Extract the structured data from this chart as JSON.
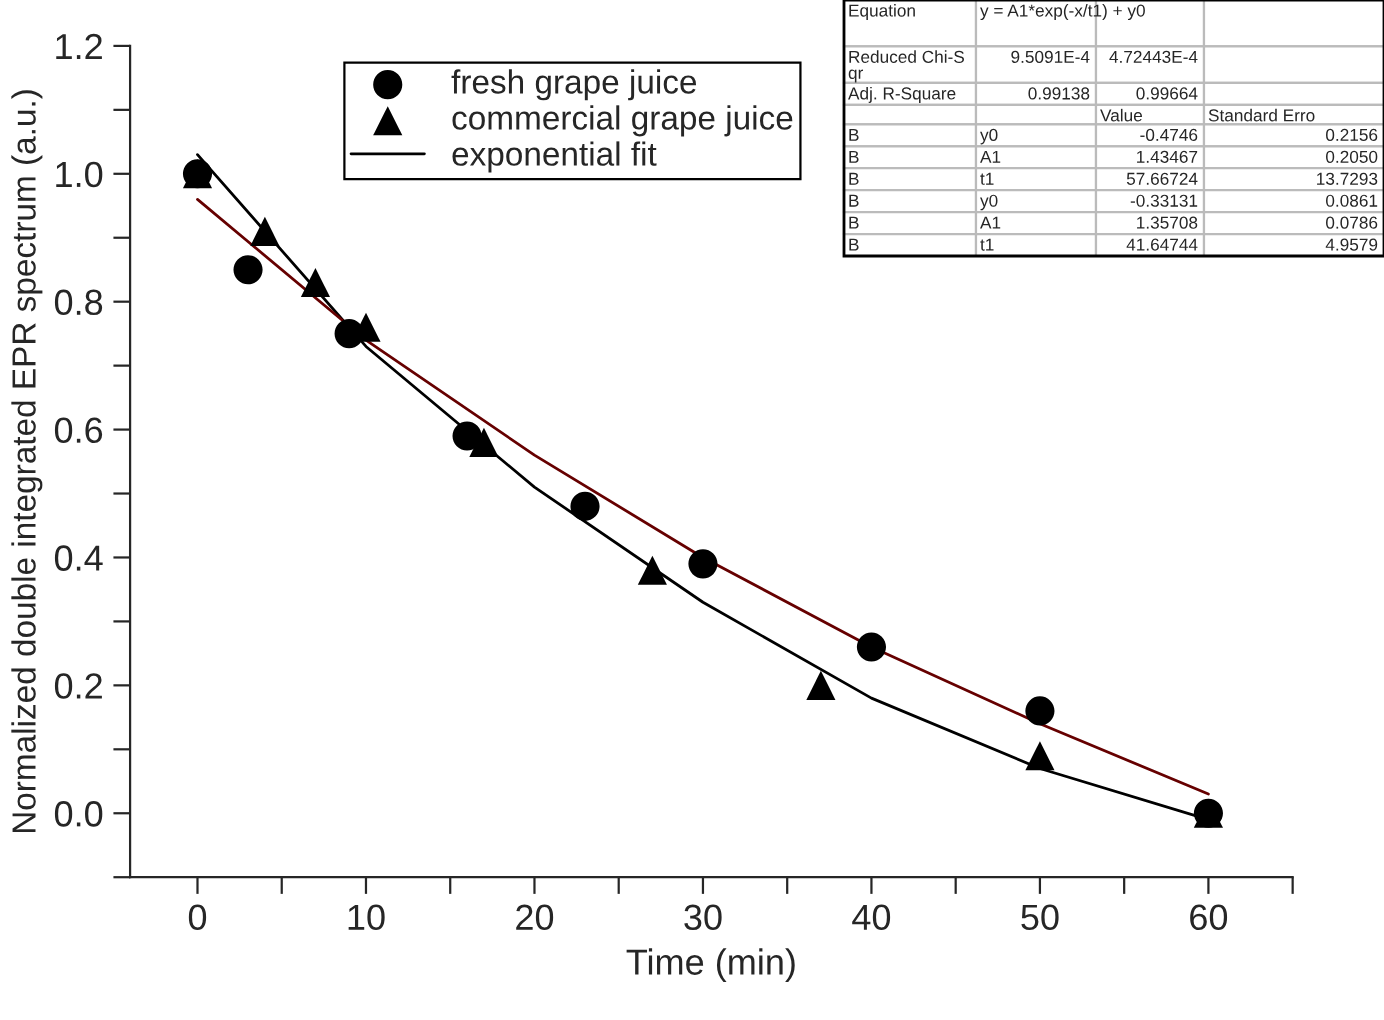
{
  "chart_data": {
    "type": "scatter",
    "xlabel": "Time (min)",
    "ylabel": "Normalized double integrated EPR spectrum (a.u.)",
    "xlim": [
      -4,
      65
    ],
    "xticks": [
      0,
      {
        "value": 5,
        "label": null
      },
      10,
      {
        "value": 15,
        "label": null
      },
      20,
      {
        "value": 25,
        "label": null
      },
      30,
      {
        "value": 35,
        "label": null
      },
      40,
      {
        "value": 45,
        "label": null
      },
      50,
      {
        "value": 55,
        "label": null
      },
      60,
      {
        "value": 65,
        "label": null
      }
    ],
    "ylim": [
      -0.1,
      1.2
    ],
    "yticks": [
      {
        "value": -0.1,
        "label": null
      },
      {
        "value": 0,
        "label": "0.0"
      },
      {
        "value": 0.1,
        "label": null
      },
      0.2,
      {
        "value": 0.3,
        "label": null
      },
      0.4,
      {
        "value": 0.5,
        "label": null
      },
      0.6,
      {
        "value": 0.7,
        "label": null
      },
      0.8,
      {
        "value": 0.9,
        "label": null
      },
      {
        "value": 1.0,
        "label": "1.0"
      },
      {
        "value": 1.1,
        "label": null
      },
      1.2
    ],
    "grid": false,
    "legend": "top left",
    "series": [
      {
        "name": "fresh grape juice",
        "marker": "circle",
        "color": "#000000",
        "x": [
          0,
          3,
          9,
          16,
          23,
          30,
          40,
          50,
          60
        ],
        "values": [
          1.0,
          0.85,
          0.75,
          0.59,
          0.48,
          0.39,
          0.26,
          0.16,
          0.0
        ]
      },
      {
        "name": "commercial grape juice",
        "marker": "triangle",
        "color": "#000000",
        "x": [
          0,
          4,
          7,
          10,
          17,
          27,
          37,
          50,
          60
        ],
        "values": [
          1.0,
          0.91,
          0.83,
          0.76,
          0.58,
          0.38,
          0.2,
          0.09,
          0.0
        ]
      },
      {
        "name": "exponential fit",
        "type": "line",
        "marker": "none",
        "line_style": "solid",
        "color": "#000000",
        "x": [
          0,
          10,
          20,
          30,
          40,
          50,
          60
        ],
        "values": [
          1.03,
          0.73,
          0.51,
          0.33,
          0.18,
          0.07,
          -0.01
        ]
      },
      {
        "type": "line",
        "marker": "none",
        "line_style": "solid",
        "color": "#660000",
        "x": [
          0,
          10,
          20,
          30,
          40,
          50,
          60
        ],
        "values": [
          0.96,
          0.74,
          0.56,
          0.4,
          0.26,
          0.14,
          0.03
        ]
      }
    ],
    "annotations": [
      "Equation",
      "y = A1*exp(-x/t1) + y0",
      "Reduced Chi-S\nqr",
      "9.5091E-4",
      "4.72443E-4",
      "Adj. R-Square",
      "0.99138",
      "0.99664",
      "Value",
      "Standard Erro",
      "B",
      "y0",
      "-0.4746",
      "0.2156",
      "B",
      "A1",
      "1.43467",
      "0.2050",
      "B",
      "t1",
      "57.66724",
      "13.7293",
      "B",
      "y0",
      "-0.33131",
      "0.0861",
      "B",
      "A1",
      "1.35708",
      "0.0786",
      "B",
      "t1",
      "41.64744",
      "4.9579"
    ]
  }
}
